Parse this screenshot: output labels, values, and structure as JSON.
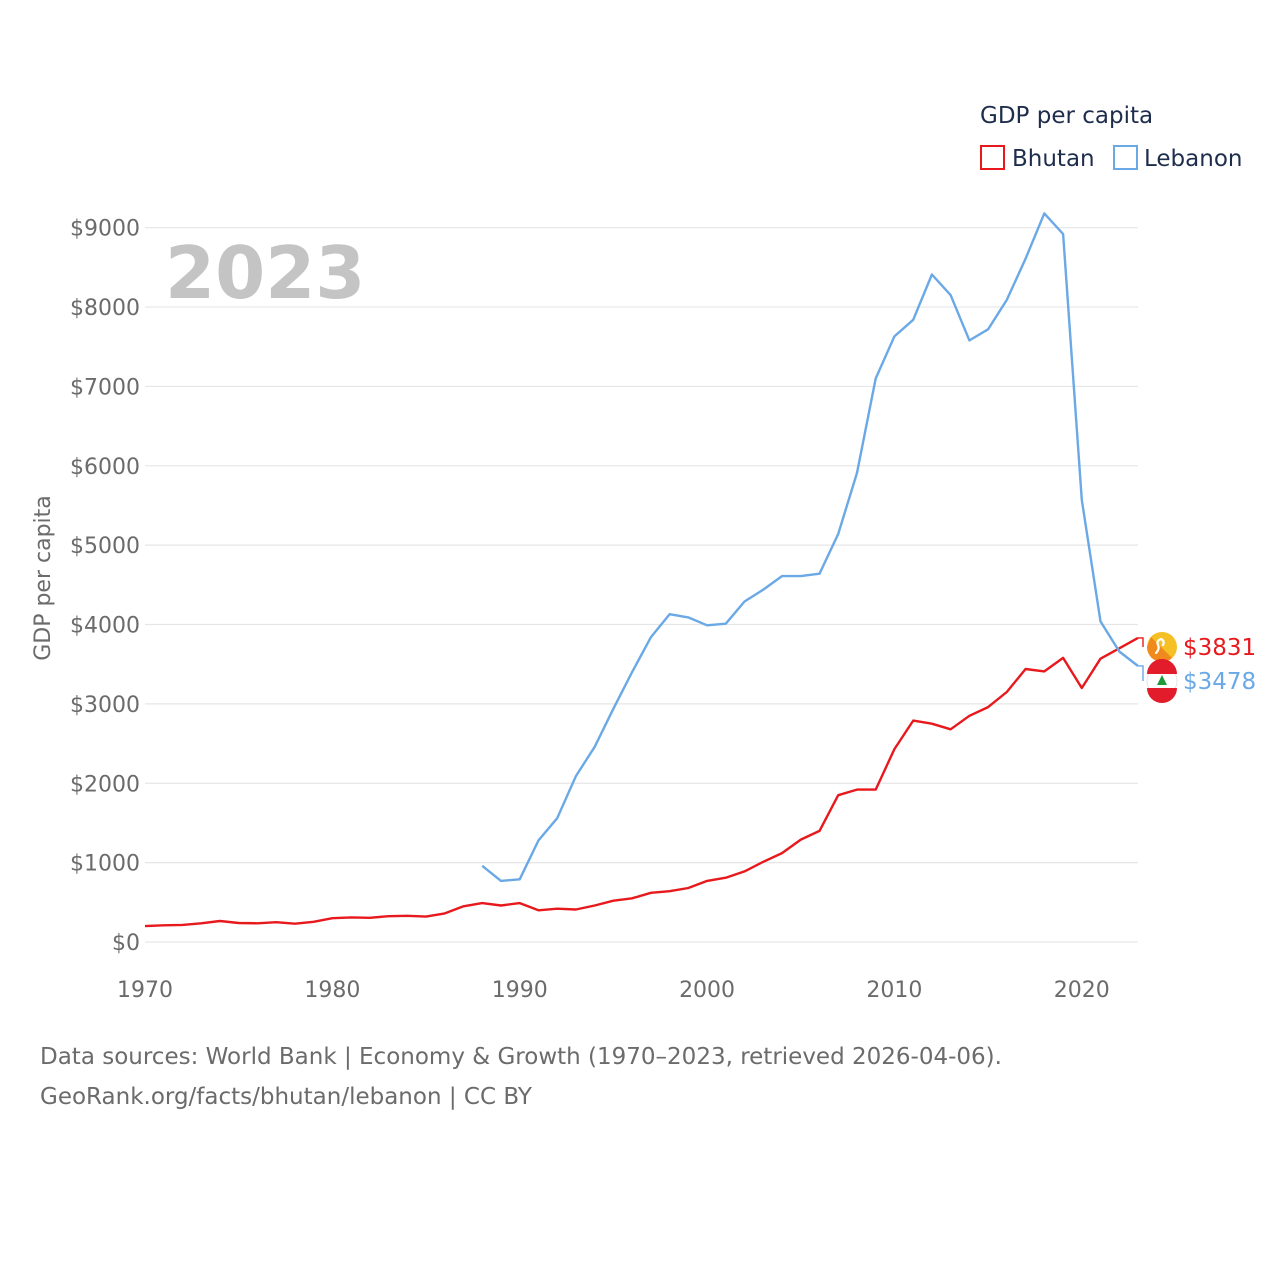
{
  "chart_data": {
    "type": "line",
    "ylabel": "GDP per capita",
    "year_label": "2023",
    "legend": {
      "title": "GDP per capita",
      "placement": "top-right"
    },
    "xlim": [
      1970,
      2023
    ],
    "ylim": [
      0,
      9500
    ],
    "x_ticks": [
      1970,
      1980,
      1990,
      2000,
      2010,
      2020
    ],
    "y_ticks": [
      0,
      1000,
      2000,
      3000,
      4000,
      5000,
      6000,
      7000,
      8000,
      9000
    ],
    "y_tick_labels": [
      "$0",
      "$1000",
      "$2000",
      "$3000",
      "$4000",
      "$5000",
      "$6000",
      "$7000",
      "$8000",
      "$9000"
    ],
    "series": [
      {
        "name": "Bhutan",
        "color": "#e8191c",
        "end_label": "$3831",
        "flag_icon": "bhutan-flag-icon",
        "x": [
          1970,
          1971,
          1972,
          1973,
          1974,
          1975,
          1976,
          1977,
          1978,
          1979,
          1980,
          1981,
          1982,
          1983,
          1984,
          1985,
          1986,
          1987,
          1988,
          1989,
          1990,
          1991,
          1992,
          1993,
          1994,
          1995,
          1996,
          1997,
          1998,
          1999,
          2000,
          2001,
          2002,
          2003,
          2004,
          2005,
          2006,
          2007,
          2008,
          2009,
          2010,
          2011,
          2012,
          2013,
          2014,
          2015,
          2016,
          2017,
          2018,
          2019,
          2020,
          2021,
          2022,
          2023
        ],
        "values": [
          200,
          210,
          215,
          235,
          265,
          240,
          235,
          250,
          230,
          255,
          300,
          310,
          305,
          325,
          330,
          320,
          360,
          450,
          490,
          460,
          490,
          400,
          420,
          410,
          460,
          520,
          550,
          620,
          640,
          680,
          770,
          810,
          890,
          1010,
          1120,
          1290,
          1400,
          1850,
          1920,
          1920,
          2430,
          2790,
          2750,
          2680,
          2850,
          2960,
          3150,
          3440,
          3410,
          3580,
          3200,
          3570,
          3700,
          3831
        ]
      },
      {
        "name": "Lebanon",
        "color": "#6aa9e6",
        "end_label": "$3478",
        "flag_icon": "lebanon-flag-icon",
        "x": [
          1988,
          1989,
          1990,
          1991,
          1992,
          1993,
          1994,
          1995,
          1996,
          1997,
          1998,
          1999,
          2000,
          2001,
          2002,
          2003,
          2004,
          2005,
          2006,
          2007,
          2008,
          2009,
          2010,
          2011,
          2012,
          2013,
          2014,
          2015,
          2016,
          2017,
          2018,
          2019,
          2020,
          2021,
          2022,
          2023
        ],
        "values": [
          960,
          770,
          790,
          1280,
          1560,
          2090,
          2460,
          2940,
          3400,
          3840,
          4130,
          4090,
          3990,
          4010,
          4290,
          4440,
          4610,
          4610,
          4640,
          5140,
          5910,
          7100,
          7630,
          7840,
          8410,
          8150,
          7580,
          7720,
          8090,
          8610,
          9180,
          8920,
          5570,
          4040,
          3660,
          3478
        ]
      }
    ]
  },
  "footer": {
    "line1": "Data sources: World Bank | Economy & Growth (1970–2023, retrieved 2026-04-06).",
    "line2": "GeoRank.org/facts/bhutan/lebanon | CC BY"
  }
}
